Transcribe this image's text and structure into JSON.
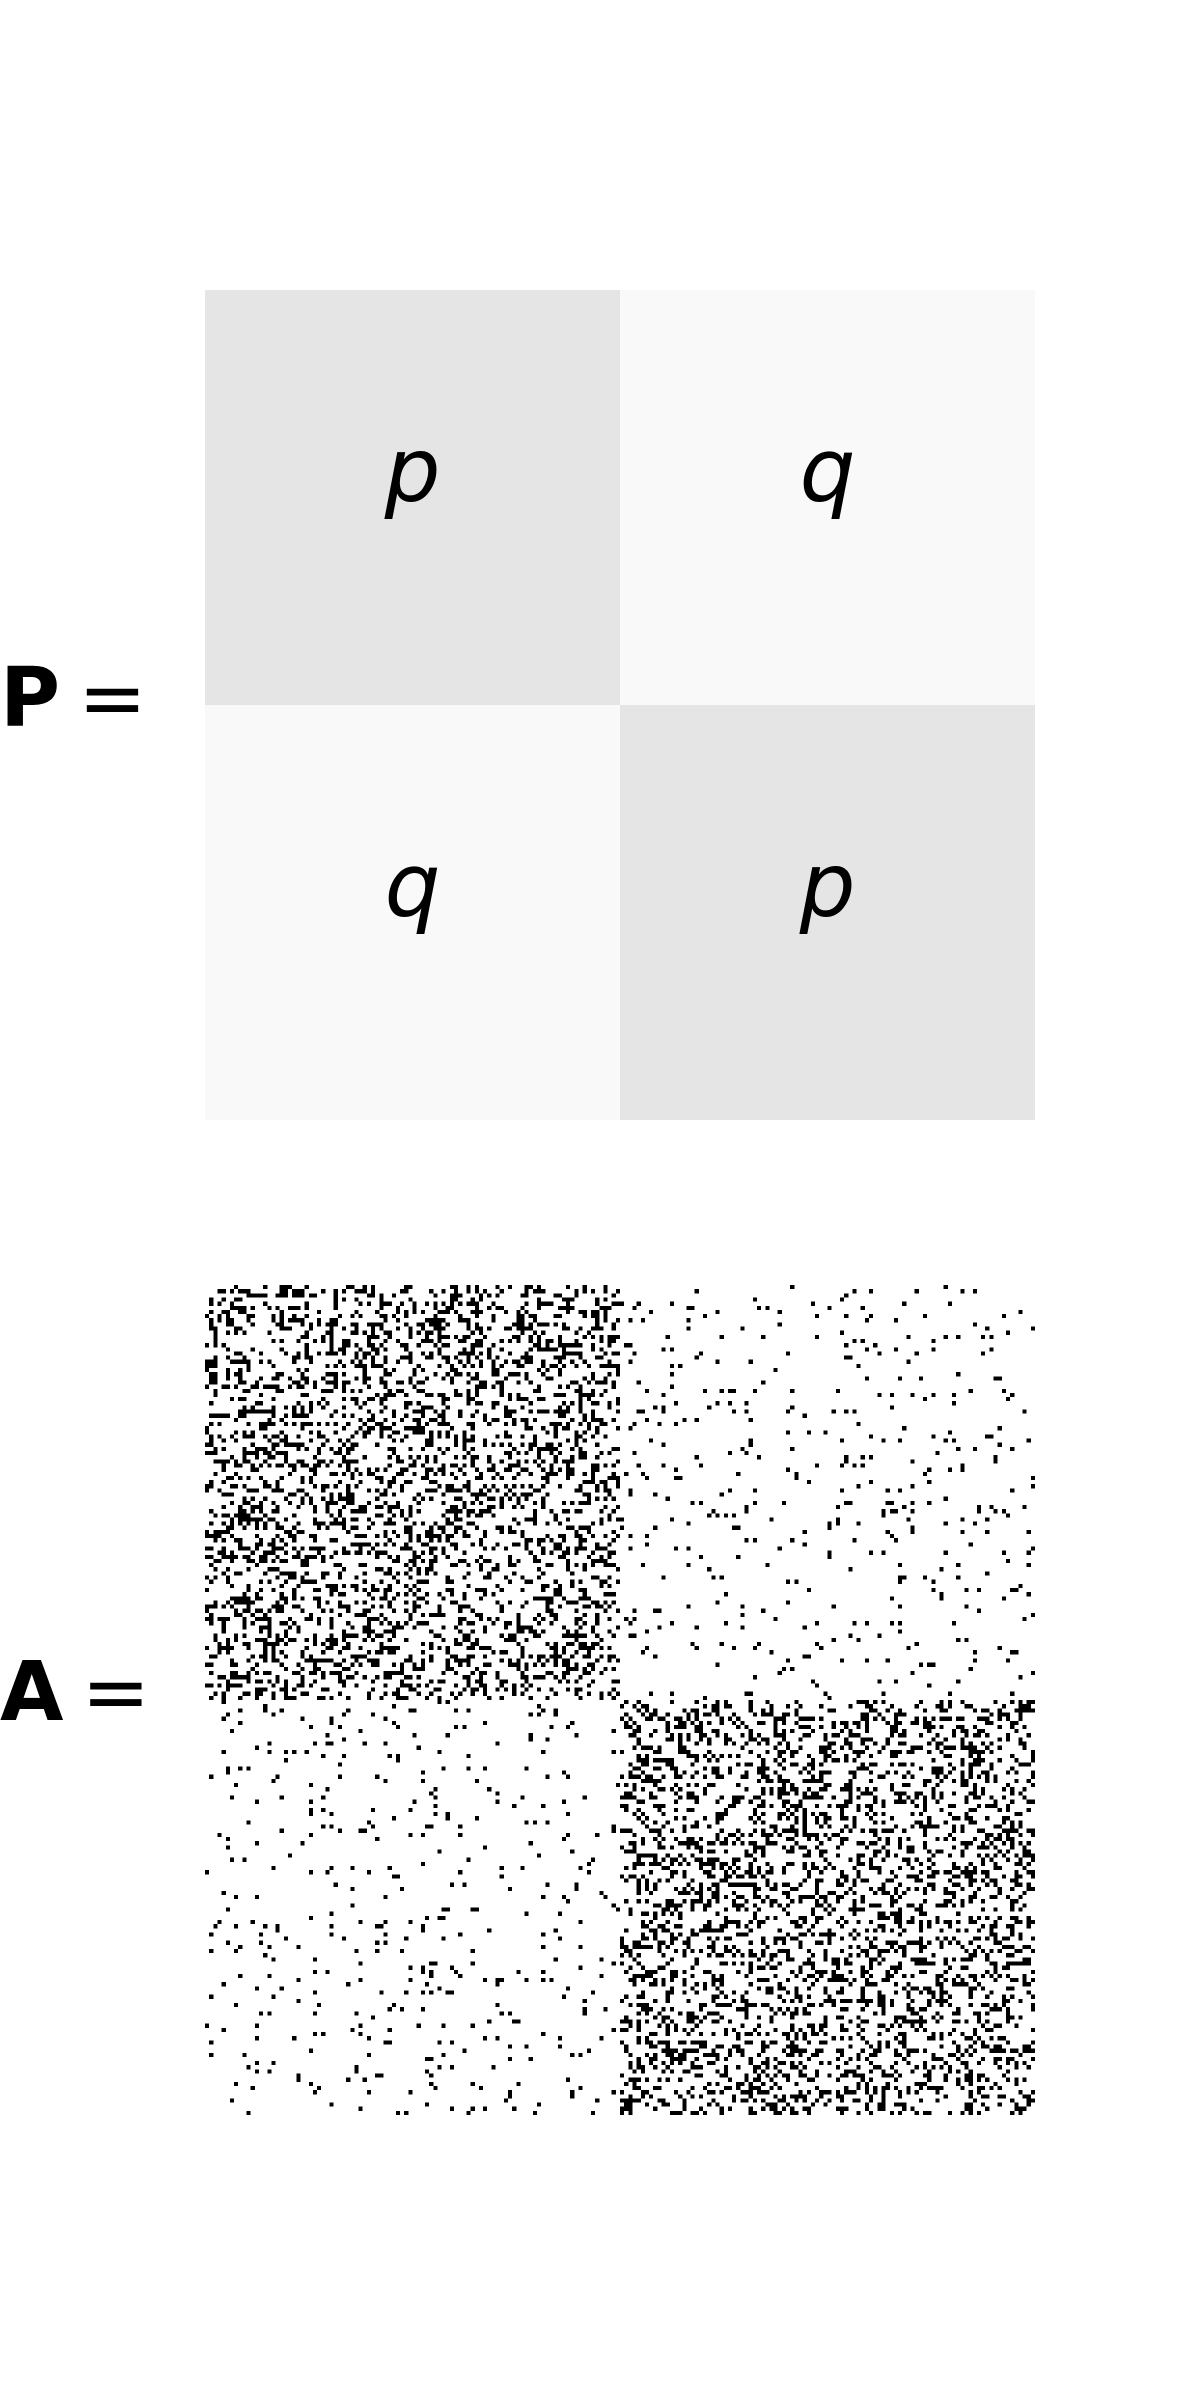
{
  "colors": {
    "diagonal_block": "#e5e5e5",
    "offdiagonal_block": "#f9f9f9",
    "edge": "#000000",
    "background": "#ffffff"
  },
  "probability_matrix": {
    "symbol": "P",
    "equals": "=",
    "cells": [
      [
        "p",
        "q"
      ],
      [
        "q",
        "p"
      ]
    ]
  },
  "adjacency_matrix": {
    "symbol": "A",
    "equals": "=",
    "n": 200,
    "block_sizes": [
      100,
      100
    ],
    "within_block_density": 0.3,
    "between_block_density": 0.04
  }
}
